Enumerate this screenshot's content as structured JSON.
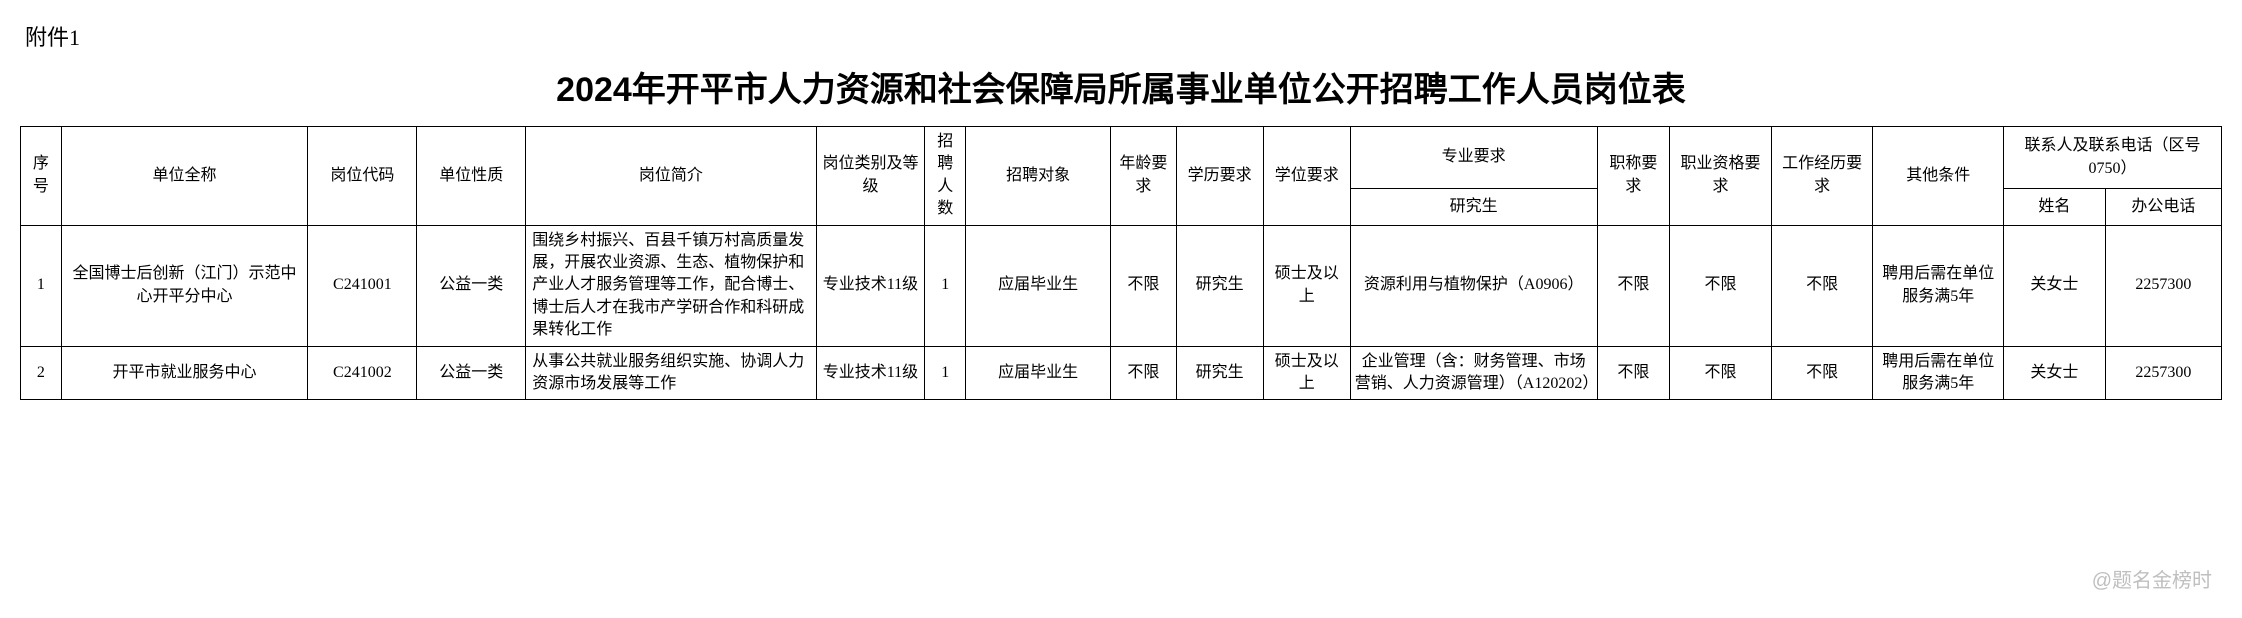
{
  "attachment_label": "附件1",
  "title": "2024年开平市人力资源和社会保障局所属事业单位公开招聘工作人员岗位表",
  "headers": {
    "seq": "序号",
    "unit": "单位全称",
    "code": "岗位代码",
    "nature": "单位性质",
    "intro": "岗位简介",
    "levelcat": "岗位类别及等级",
    "count": "招聘人数",
    "target": "招聘对象",
    "age": "年龄要求",
    "edu": "学历要求",
    "degree": "学位要求",
    "major_group": "专业要求",
    "major_sub": "研究生",
    "title_req": "职称要求",
    "qual": "职业资格要求",
    "exp": "工作经历要求",
    "other": "其他条件",
    "contact_group": "联系人及联系电话（区号0750）",
    "contact_name": "姓名",
    "contact_phone": "办公电话"
  },
  "rows": [
    {
      "seq": "1",
      "unit": "全国博士后创新（江门）示范中心开平分中心",
      "code": "C241001",
      "nature": "公益一类",
      "intro": "围绕乡村振兴、百县千镇万村高质量发展，开展农业资源、生态、植物保护和产业人才服务管理等工作，配合博士、博士后人才在我市产学研合作和科研成果转化工作",
      "levelcat": "专业技术11级",
      "count": "1",
      "target": "应届毕业生",
      "age": "不限",
      "edu": "研究生",
      "degree": "硕士及以上",
      "major": "资源利用与植物保护（A0906）",
      "title_req": "不限",
      "qual": "不限",
      "exp": "不限",
      "other": "聘用后需在单位服务满5年",
      "contact_name": "关女士",
      "contact_phone": "2257300"
    },
    {
      "seq": "2",
      "unit": "开平市就业服务中心",
      "code": "C241002",
      "nature": "公益一类",
      "intro": "从事公共就业服务组织实施、协调人力资源市场发展等工作",
      "levelcat": "专业技术11级",
      "count": "1",
      "target": "应届毕业生",
      "age": "不限",
      "edu": "研究生",
      "degree": "硕士及以上",
      "major": "企业管理（含：财务管理、市场营销、人力资源管理）（A120202）",
      "title_req": "不限",
      "qual": "不限",
      "exp": "不限",
      "other": "聘用后需在单位服务满5年",
      "contact_name": "关女士",
      "contact_phone": "2257300"
    }
  ],
  "watermark": "@题名金榜时",
  "style": {
    "background_color": "#ffffff",
    "text_color": "#000000",
    "border_color": "#000000",
    "title_fontsize": 34,
    "body_fontsize": 16,
    "attachment_fontsize": 22,
    "watermark_color": "#bfbfbf"
  }
}
